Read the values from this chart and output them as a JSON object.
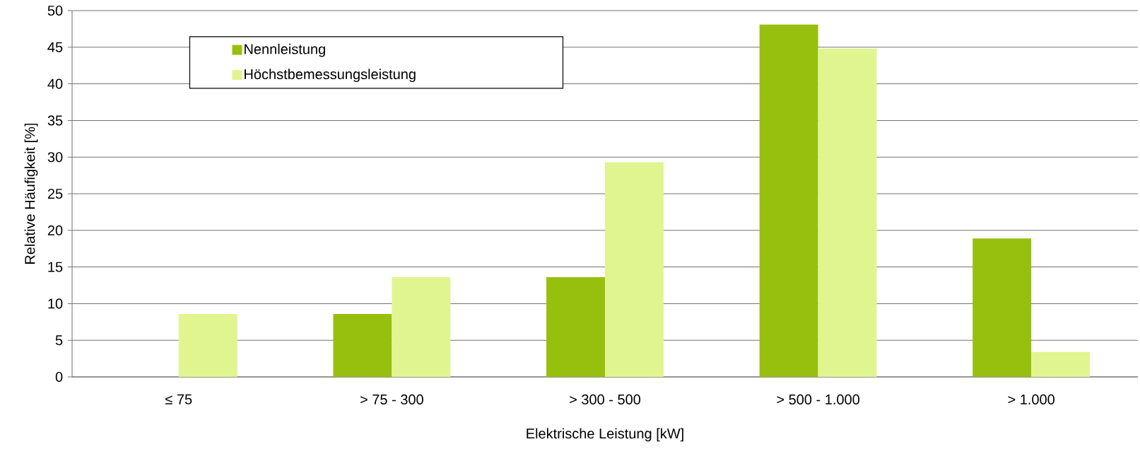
{
  "chart_data": {
    "type": "bar",
    "xlabel": "Elektrische Leistung [kW]",
    "ylabel": "Relative Häufigkeit [%]",
    "categories": [
      "≤ 75",
      "> 75 - 300",
      "> 300 - 500",
      "> 500 - 1.000",
      "> 1.000"
    ],
    "series": [
      {
        "name": "Nennleistung",
        "color": "#97c00e",
        "values": [
          0,
          8.6,
          13.6,
          48.1,
          18.9
        ]
      },
      {
        "name": "Höchstbemessungsleistung",
        "color": "#e0f590",
        "values": [
          8.6,
          13.6,
          29.3,
          44.8,
          3.4
        ]
      }
    ],
    "ylim": [
      0,
      50
    ],
    "yticks": [
      0,
      5,
      10,
      15,
      20,
      25,
      30,
      35,
      40,
      45,
      50
    ],
    "grid": "y",
    "legend": "top left"
  }
}
